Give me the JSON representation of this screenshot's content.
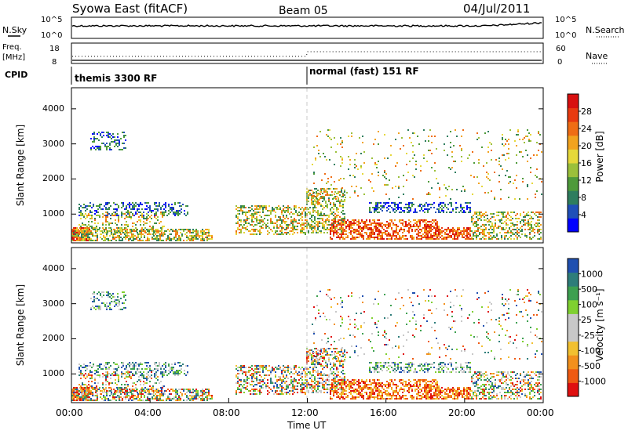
{
  "header": {
    "station": "Syowa East (fitACF)",
    "beam": "Beam 05",
    "date": "04/Jul/2011"
  },
  "noise_panel": {
    "left_label": "N.Sky",
    "right_label": "N.Search",
    "left_ticks": [
      "10^5",
      "10^0"
    ],
    "right_ticks": [
      "10^5",
      "10^0"
    ]
  },
  "freq_panel": {
    "left_label_top": "Freq.",
    "left_label_bottom": "[MHz]",
    "right_label": "Nave",
    "left_ticks": [
      "18",
      "8"
    ],
    "right_ticks": [
      "60",
      "0"
    ]
  },
  "cpid": {
    "label": "CPID",
    "modes": [
      {
        "name": "themis 3300 RF",
        "start_ut": 0
      },
      {
        "name": "normal (fast) 151 RF",
        "start_ut": 12
      }
    ]
  },
  "time_axis": {
    "label": "Time UT",
    "ticks": [
      "00:00",
      "04:00",
      "08:00",
      "12:00",
      "16:00",
      "20:00",
      "00:00"
    ],
    "range_hours": [
      0,
      24
    ]
  },
  "chart_data": [
    {
      "type": "heatmap",
      "name": "power",
      "ylabel": "Slant Range [km]",
      "yticks": [
        "1000",
        "2000",
        "3000",
        "4000"
      ],
      "ylim": [
        180,
        4600
      ],
      "colorbar": {
        "label": "Power [dB]",
        "ticks": [
          "4",
          "8",
          "12",
          "16",
          "20",
          "24",
          "28"
        ],
        "range": [
          0,
          30
        ],
        "colors": [
          "#0000ff",
          "#1f4fb8",
          "#2e7d5e",
          "#4e9a3a",
          "#9bc03a",
          "#e6d83a",
          "#f2a31e",
          "#ef6d14",
          "#e83a10",
          "#d81010"
        ]
      }
    },
    {
      "type": "heatmap",
      "name": "velocity",
      "ylabel": "Slant Range [km]",
      "yticks": [
        "1000",
        "2000",
        "3000",
        "4000"
      ],
      "ylim": [
        180,
        4600
      ],
      "colorbar": {
        "label": "Velocity [m s⁻¹]",
        "ticks": [
          "1000",
          "500",
          "100",
          "25",
          "-25",
          "-100",
          "-500",
          "-1000"
        ],
        "range": [
          -1000,
          1000
        ],
        "colors": [
          "#e01010",
          "#ef5a12",
          "#f2901c",
          "#f2c030",
          "#c8c8c8",
          "#c8c8c8",
          "#7fd030",
          "#3da050",
          "#2e7d7a",
          "#2050b0"
        ]
      }
    }
  ]
}
